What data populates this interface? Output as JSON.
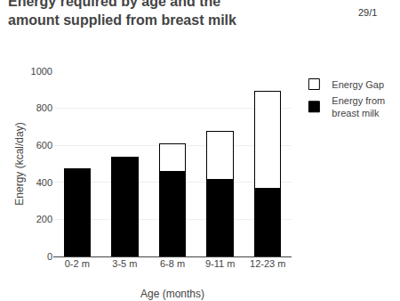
{
  "chart_data": {
    "type": "bar",
    "stacked": true,
    "title": "Energy required by age and the\namount supplied from breast milk",
    "annotations": [
      "29/1"
    ],
    "x_label": "Age (months)",
    "y_label": "Energy (kcal/day)",
    "categories": [
      "0-2 m",
      "3-5 m",
      "6-8 m",
      "9-11 m",
      "12-23 m"
    ],
    "series": [
      {
        "name": "Energy from\nbreast milk",
        "color": "#000000",
        "values": [
          475,
          535,
          460,
          415,
          370
        ]
      },
      {
        "name": "Energy Gap",
        "color": "#ffffff",
        "values": [
          0,
          0,
          150,
          260,
          520
        ]
      }
    ],
    "ylim": [
      0,
      1000
    ],
    "yticks": [
      0,
      200,
      400,
      600,
      800,
      1000
    ],
    "grid": true,
    "legend": "right"
  }
}
